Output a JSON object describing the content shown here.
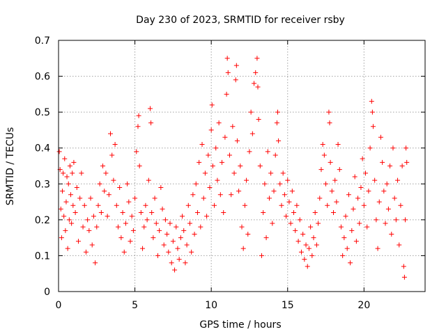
{
  "chart_data": {
    "type": "scatter",
    "title": "Day 230 of 2023, SRMTID for receiver rsby",
    "xlabel": "GPS time / hours",
    "ylabel": "SRMTID / TECUs",
    "xlim": [
      0,
      24
    ],
    "ylim": [
      0,
      0.7
    ],
    "x_ticks": [
      0,
      5,
      10,
      15,
      20
    ],
    "y_ticks": [
      0,
      0.1,
      0.2,
      0.3,
      0.4,
      0.5,
      0.6,
      0.7
    ],
    "x_tick_labels": [
      "0",
      "5",
      "10",
      "15",
      "20"
    ],
    "y_tick_labels": [
      "0",
      "0.1",
      "0.2",
      "0.3",
      "0.4",
      "0.5",
      "0.6",
      "0.7"
    ],
    "grid": true,
    "marker": "+",
    "color": "#ff0000",
    "series": [
      {
        "name": "SRMTID",
        "points": [
          [
            0.05,
            0.39
          ],
          [
            0.1,
            0.34
          ],
          [
            0.15,
            0.23
          ],
          [
            0.2,
            0.15
          ],
          [
            0.25,
            0.28
          ],
          [
            0.3,
            0.33
          ],
          [
            0.35,
            0.21
          ],
          [
            0.4,
            0.37
          ],
          [
            0.45,
            0.17
          ],
          [
            0.5,
            0.25
          ],
          [
            0.55,
            0.32
          ],
          [
            0.6,
            0.12
          ],
          [
            0.65,
            0.3
          ],
          [
            0.7,
            0.2
          ],
          [
            0.75,
            0.35
          ],
          [
            0.8,
            0.27
          ],
          [
            0.85,
            0.19
          ],
          [
            0.9,
            0.33
          ],
          [
            0.95,
            0.24
          ],
          [
            1.0,
            0.36
          ],
          [
            1.1,
            0.22
          ],
          [
            1.2,
            0.29
          ],
          [
            1.3,
            0.14
          ],
          [
            1.4,
            0.26
          ],
          [
            1.5,
            0.33
          ],
          [
            1.6,
            0.18
          ],
          [
            1.7,
            0.24
          ],
          [
            1.8,
            0.11
          ],
          [
            1.9,
            0.2
          ],
          [
            2.0,
            0.17
          ],
          [
            2.1,
            0.26
          ],
          [
            2.2,
            0.13
          ],
          [
            2.3,
            0.21
          ],
          [
            2.4,
            0.08
          ],
          [
            2.5,
            0.18
          ],
          [
            2.6,
            0.24
          ],
          [
            2.7,
            0.3
          ],
          [
            2.8,
            0.22
          ],
          [
            2.9,
            0.35
          ],
          [
            3.0,
            0.28
          ],
          [
            3.1,
            0.33
          ],
          [
            3.2,
            0.21
          ],
          [
            3.3,
            0.27
          ],
          [
            3.4,
            0.44
          ],
          [
            3.5,
            0.38
          ],
          [
            3.6,
            0.31
          ],
          [
            3.7,
            0.41
          ],
          [
            3.8,
            0.24
          ],
          [
            3.9,
            0.18
          ],
          [
            4.0,
            0.29
          ],
          [
            4.1,
            0.15
          ],
          [
            4.2,
            0.22
          ],
          [
            4.3,
            0.11
          ],
          [
            4.4,
            0.19
          ],
          [
            4.5,
            0.3
          ],
          [
            4.6,
            0.25
          ],
          [
            4.7,
            0.14
          ],
          [
            4.8,
            0.21
          ],
          [
            4.9,
            0.17
          ],
          [
            5.0,
            0.26
          ],
          [
            5.1,
            0.39
          ],
          [
            5.2,
            0.46
          ],
          [
            5.25,
            0.49
          ],
          [
            5.3,
            0.35
          ],
          [
            5.4,
            0.22
          ],
          [
            5.5,
            0.12
          ],
          [
            5.6,
            0.18
          ],
          [
            5.7,
            0.24
          ],
          [
            5.8,
            0.2
          ],
          [
            5.9,
            0.31
          ],
          [
            6.0,
            0.51
          ],
          [
            6.05,
            0.47
          ],
          [
            6.1,
            0.22
          ],
          [
            6.2,
            0.15
          ],
          [
            6.3,
            0.26
          ],
          [
            6.4,
            0.19
          ],
          [
            6.5,
            0.1
          ],
          [
            6.6,
            0.17
          ],
          [
            6.7,
            0.29
          ],
          [
            6.8,
            0.23
          ],
          [
            6.9,
            0.13
          ],
          [
            7.0,
            0.2
          ],
          [
            7.1,
            0.16
          ],
          [
            7.2,
            0.11
          ],
          [
            7.3,
            0.19
          ],
          [
            7.4,
            0.08
          ],
          [
            7.5,
            0.14
          ],
          [
            7.6,
            0.06
          ],
          [
            7.7,
            0.18
          ],
          [
            7.8,
            0.12
          ],
          [
            7.9,
            0.09
          ],
          [
            8.0,
            0.15
          ],
          [
            8.1,
            0.21
          ],
          [
            8.2,
            0.17
          ],
          [
            8.3,
            0.08
          ],
          [
            8.4,
            0.13
          ],
          [
            8.5,
            0.24
          ],
          [
            8.6,
            0.19
          ],
          [
            8.7,
            0.11
          ],
          [
            8.8,
            0.27
          ],
          [
            8.9,
            0.16
          ],
          [
            9.0,
            0.3
          ],
          [
            9.1,
            0.22
          ],
          [
            9.2,
            0.36
          ],
          [
            9.3,
            0.18
          ],
          [
            9.4,
            0.41
          ],
          [
            9.5,
            0.26
          ],
          [
            9.6,
            0.33
          ],
          [
            9.7,
            0.21
          ],
          [
            9.8,
            0.38
          ],
          [
            9.9,
            0.29
          ],
          [
            10.0,
            0.45
          ],
          [
            10.05,
            0.52
          ],
          [
            10.1,
            0.35
          ],
          [
            10.2,
            0.24
          ],
          [
            10.3,
            0.4
          ],
          [
            10.4,
            0.31
          ],
          [
            10.5,
            0.47
          ],
          [
            10.6,
            0.27
          ],
          [
            10.7,
            0.36
          ],
          [
            10.8,
            0.22
          ],
          [
            10.9,
            0.43
          ],
          [
            11.0,
            0.55
          ],
          [
            11.05,
            0.65
          ],
          [
            11.1,
            0.61
          ],
          [
            11.2,
            0.38
          ],
          [
            11.3,
            0.27
          ],
          [
            11.4,
            0.46
          ],
          [
            11.5,
            0.33
          ],
          [
            11.6,
            0.59
          ],
          [
            11.65,
            0.63
          ],
          [
            11.7,
            0.42
          ],
          [
            11.8,
            0.28
          ],
          [
            11.9,
            0.35
          ],
          [
            12.0,
            0.18
          ],
          [
            12.1,
            0.12
          ],
          [
            12.2,
            0.24
          ],
          [
            12.3,
            0.31
          ],
          [
            12.4,
            0.16
          ],
          [
            12.5,
            0.39
          ],
          [
            12.6,
            0.5
          ],
          [
            12.7,
            0.44
          ],
          [
            12.8,
            0.58
          ],
          [
            12.9,
            0.61
          ],
          [
            13.0,
            0.65
          ],
          [
            13.05,
            0.57
          ],
          [
            13.1,
            0.48
          ],
          [
            13.2,
            0.35
          ],
          [
            13.3,
            0.1
          ],
          [
            13.4,
            0.22
          ],
          [
            13.5,
            0.3
          ],
          [
            13.6,
            0.15
          ],
          [
            13.7,
            0.39
          ],
          [
            13.8,
            0.26
          ],
          [
            13.9,
            0.33
          ],
          [
            14.0,
            0.19
          ],
          [
            14.1,
            0.28
          ],
          [
            14.2,
            0.38
          ],
          [
            14.3,
            0.47
          ],
          [
            14.35,
            0.5
          ],
          [
            14.4,
            0.42
          ],
          [
            14.5,
            0.3
          ],
          [
            14.6,
            0.24
          ],
          [
            14.7,
            0.33
          ],
          [
            14.8,
            0.27
          ],
          [
            14.9,
            0.21
          ],
          [
            15.0,
            0.31
          ],
          [
            15.1,
            0.25
          ],
          [
            15.2,
            0.19
          ],
          [
            15.3,
            0.28
          ],
          [
            15.4,
            0.22
          ],
          [
            15.5,
            0.17
          ],
          [
            15.6,
            0.24
          ],
          [
            15.7,
            0.14
          ],
          [
            15.8,
            0.2
          ],
          [
            15.9,
            0.11
          ],
          [
            16.0,
            0.16
          ],
          [
            16.1,
            0.09
          ],
          [
            16.2,
            0.13
          ],
          [
            16.3,
            0.07
          ],
          [
            16.4,
            0.12
          ],
          [
            16.5,
            0.18
          ],
          [
            16.6,
            0.1
          ],
          [
            16.7,
            0.15
          ],
          [
            16.8,
            0.22
          ],
          [
            16.9,
            0.13
          ],
          [
            17.0,
            0.19
          ],
          [
            17.1,
            0.26
          ],
          [
            17.2,
            0.34
          ],
          [
            17.3,
            0.41
          ],
          [
            17.4,
            0.38
          ],
          [
            17.5,
            0.3
          ],
          [
            17.6,
            0.24
          ],
          [
            17.7,
            0.5
          ],
          [
            17.75,
            0.47
          ],
          [
            17.8,
            0.36
          ],
          [
            17.9,
            0.28
          ],
          [
            18.0,
            0.22
          ],
          [
            18.1,
            0.31
          ],
          [
            18.2,
            0.25
          ],
          [
            18.3,
            0.41
          ],
          [
            18.4,
            0.34
          ],
          [
            18.5,
            0.18
          ],
          [
            18.6,
            0.1
          ],
          [
            18.7,
            0.15
          ],
          [
            18.8,
            0.21
          ],
          [
            18.9,
            0.12
          ],
          [
            19.0,
            0.27
          ],
          [
            19.1,
            0.08
          ],
          [
            19.2,
            0.17
          ],
          [
            19.3,
            0.23
          ],
          [
            19.4,
            0.32
          ],
          [
            19.5,
            0.14
          ],
          [
            19.6,
            0.26
          ],
          [
            19.7,
            0.19
          ],
          [
            19.8,
            0.29
          ],
          [
            19.9,
            0.37
          ],
          [
            20.0,
            0.24
          ],
          [
            20.1,
            0.33
          ],
          [
            20.2,
            0.18
          ],
          [
            20.3,
            0.28
          ],
          [
            20.4,
            0.4
          ],
          [
            20.5,
            0.53
          ],
          [
            20.55,
            0.5
          ],
          [
            20.6,
            0.46
          ],
          [
            20.7,
            0.31
          ],
          [
            20.8,
            0.2
          ],
          [
            20.9,
            0.12
          ],
          [
            21.0,
            0.25
          ],
          [
            21.1,
            0.43
          ],
          [
            21.2,
            0.36
          ],
          [
            21.3,
            0.28
          ],
          [
            21.4,
            0.19
          ],
          [
            21.5,
            0.3
          ],
          [
            21.6,
            0.23
          ],
          [
            21.7,
            0.35
          ],
          [
            21.8,
            0.16
          ],
          [
            21.9,
            0.4
          ],
          [
            22.0,
            0.26
          ],
          [
            22.1,
            0.2
          ],
          [
            22.2,
            0.31
          ],
          [
            22.3,
            0.13
          ],
          [
            22.4,
            0.24
          ],
          [
            22.5,
            0.35
          ],
          [
            22.6,
            0.07
          ],
          [
            22.65,
            0.04
          ],
          [
            22.7,
            0.2
          ],
          [
            22.75,
            0.4
          ],
          [
            22.8,
            0.36
          ]
        ]
      }
    ]
  }
}
